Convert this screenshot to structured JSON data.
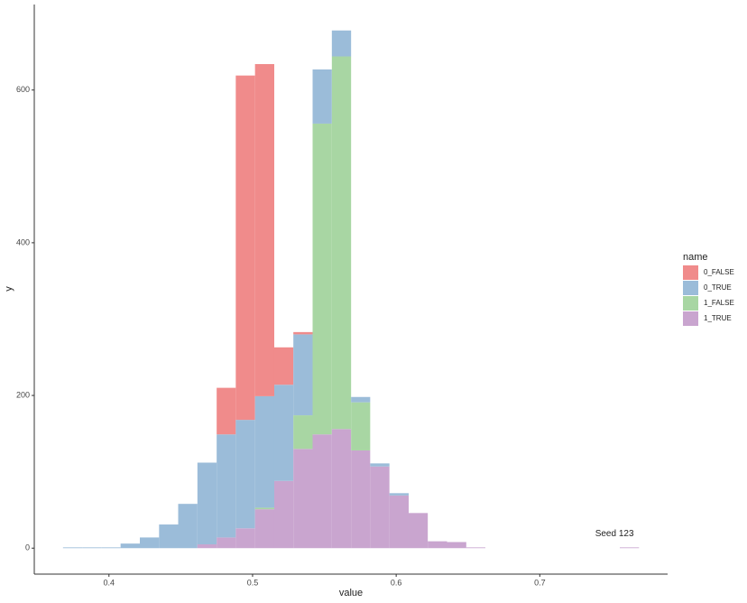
{
  "chart_data": {
    "type": "histogram",
    "stacked": true,
    "x_label": "value",
    "y_label": "y",
    "legend_title": "name",
    "legend_position": "right",
    "bins": [
      0.368,
      0.3814,
      0.3947,
      0.4081,
      0.4215,
      0.4349,
      0.4482,
      0.4616,
      0.475,
      0.4883,
      0.5017,
      0.5151,
      0.5284,
      0.5418,
      0.5552,
      0.5686,
      0.5819,
      0.5953,
      0.6087,
      0.622,
      0.6354,
      0.6488,
      0.6621,
      0.6755,
      0.6889,
      0.7023,
      0.7156,
      0.729,
      0.7424,
      0.7557,
      0.7691
    ],
    "series": [
      {
        "name": "0_FALSE",
        "color": "#f08b8b",
        "values": [
          0,
          0,
          0,
          0,
          0,
          0,
          0,
          0,
          61,
          451,
          435,
          49,
          3,
          0,
          0,
          0,
          0,
          0,
          0,
          0,
          0,
          0,
          0,
          0,
          0,
          0,
          0,
          0,
          0,
          0
        ]
      },
      {
        "name": "0_TRUE",
        "color": "#9bbcd9",
        "values": [
          1,
          1,
          1,
          6,
          14,
          31,
          58,
          107,
          135,
          142,
          146,
          126,
          106,
          71,
          34,
          7,
          4,
          3,
          0,
          0,
          0,
          0,
          0,
          0,
          0,
          0,
          0,
          0,
          0,
          0
        ]
      },
      {
        "name": "1_FALSE",
        "color": "#a8d6a3",
        "values": [
          0,
          0,
          0,
          0,
          0,
          0,
          0,
          0,
          0,
          0,
          2,
          0,
          44,
          407,
          488,
          63,
          0,
          0,
          0,
          0,
          0,
          0,
          0,
          0,
          0,
          0,
          0,
          0,
          0,
          0
        ]
      },
      {
        "name": "1_TRUE",
        "color": "#c9a5cf",
        "values": [
          0,
          0,
          0,
          0,
          0,
          0,
          0,
          5,
          14,
          26,
          51,
          88,
          130,
          149,
          156,
          128,
          107,
          69,
          46,
          9,
          8,
          1,
          0,
          0,
          0,
          0,
          0,
          0,
          0,
          1
        ]
      }
    ],
    "xlim": [
      0.348,
      0.789
    ],
    "ylim": [
      -34,
      712
    ],
    "xticks": [
      0.4,
      0.5,
      0.6,
      0.7
    ],
    "yticks": [
      0,
      200,
      400,
      600
    ],
    "annotation": {
      "text": "Seed 123",
      "x": 0.752,
      "y": 19
    }
  }
}
